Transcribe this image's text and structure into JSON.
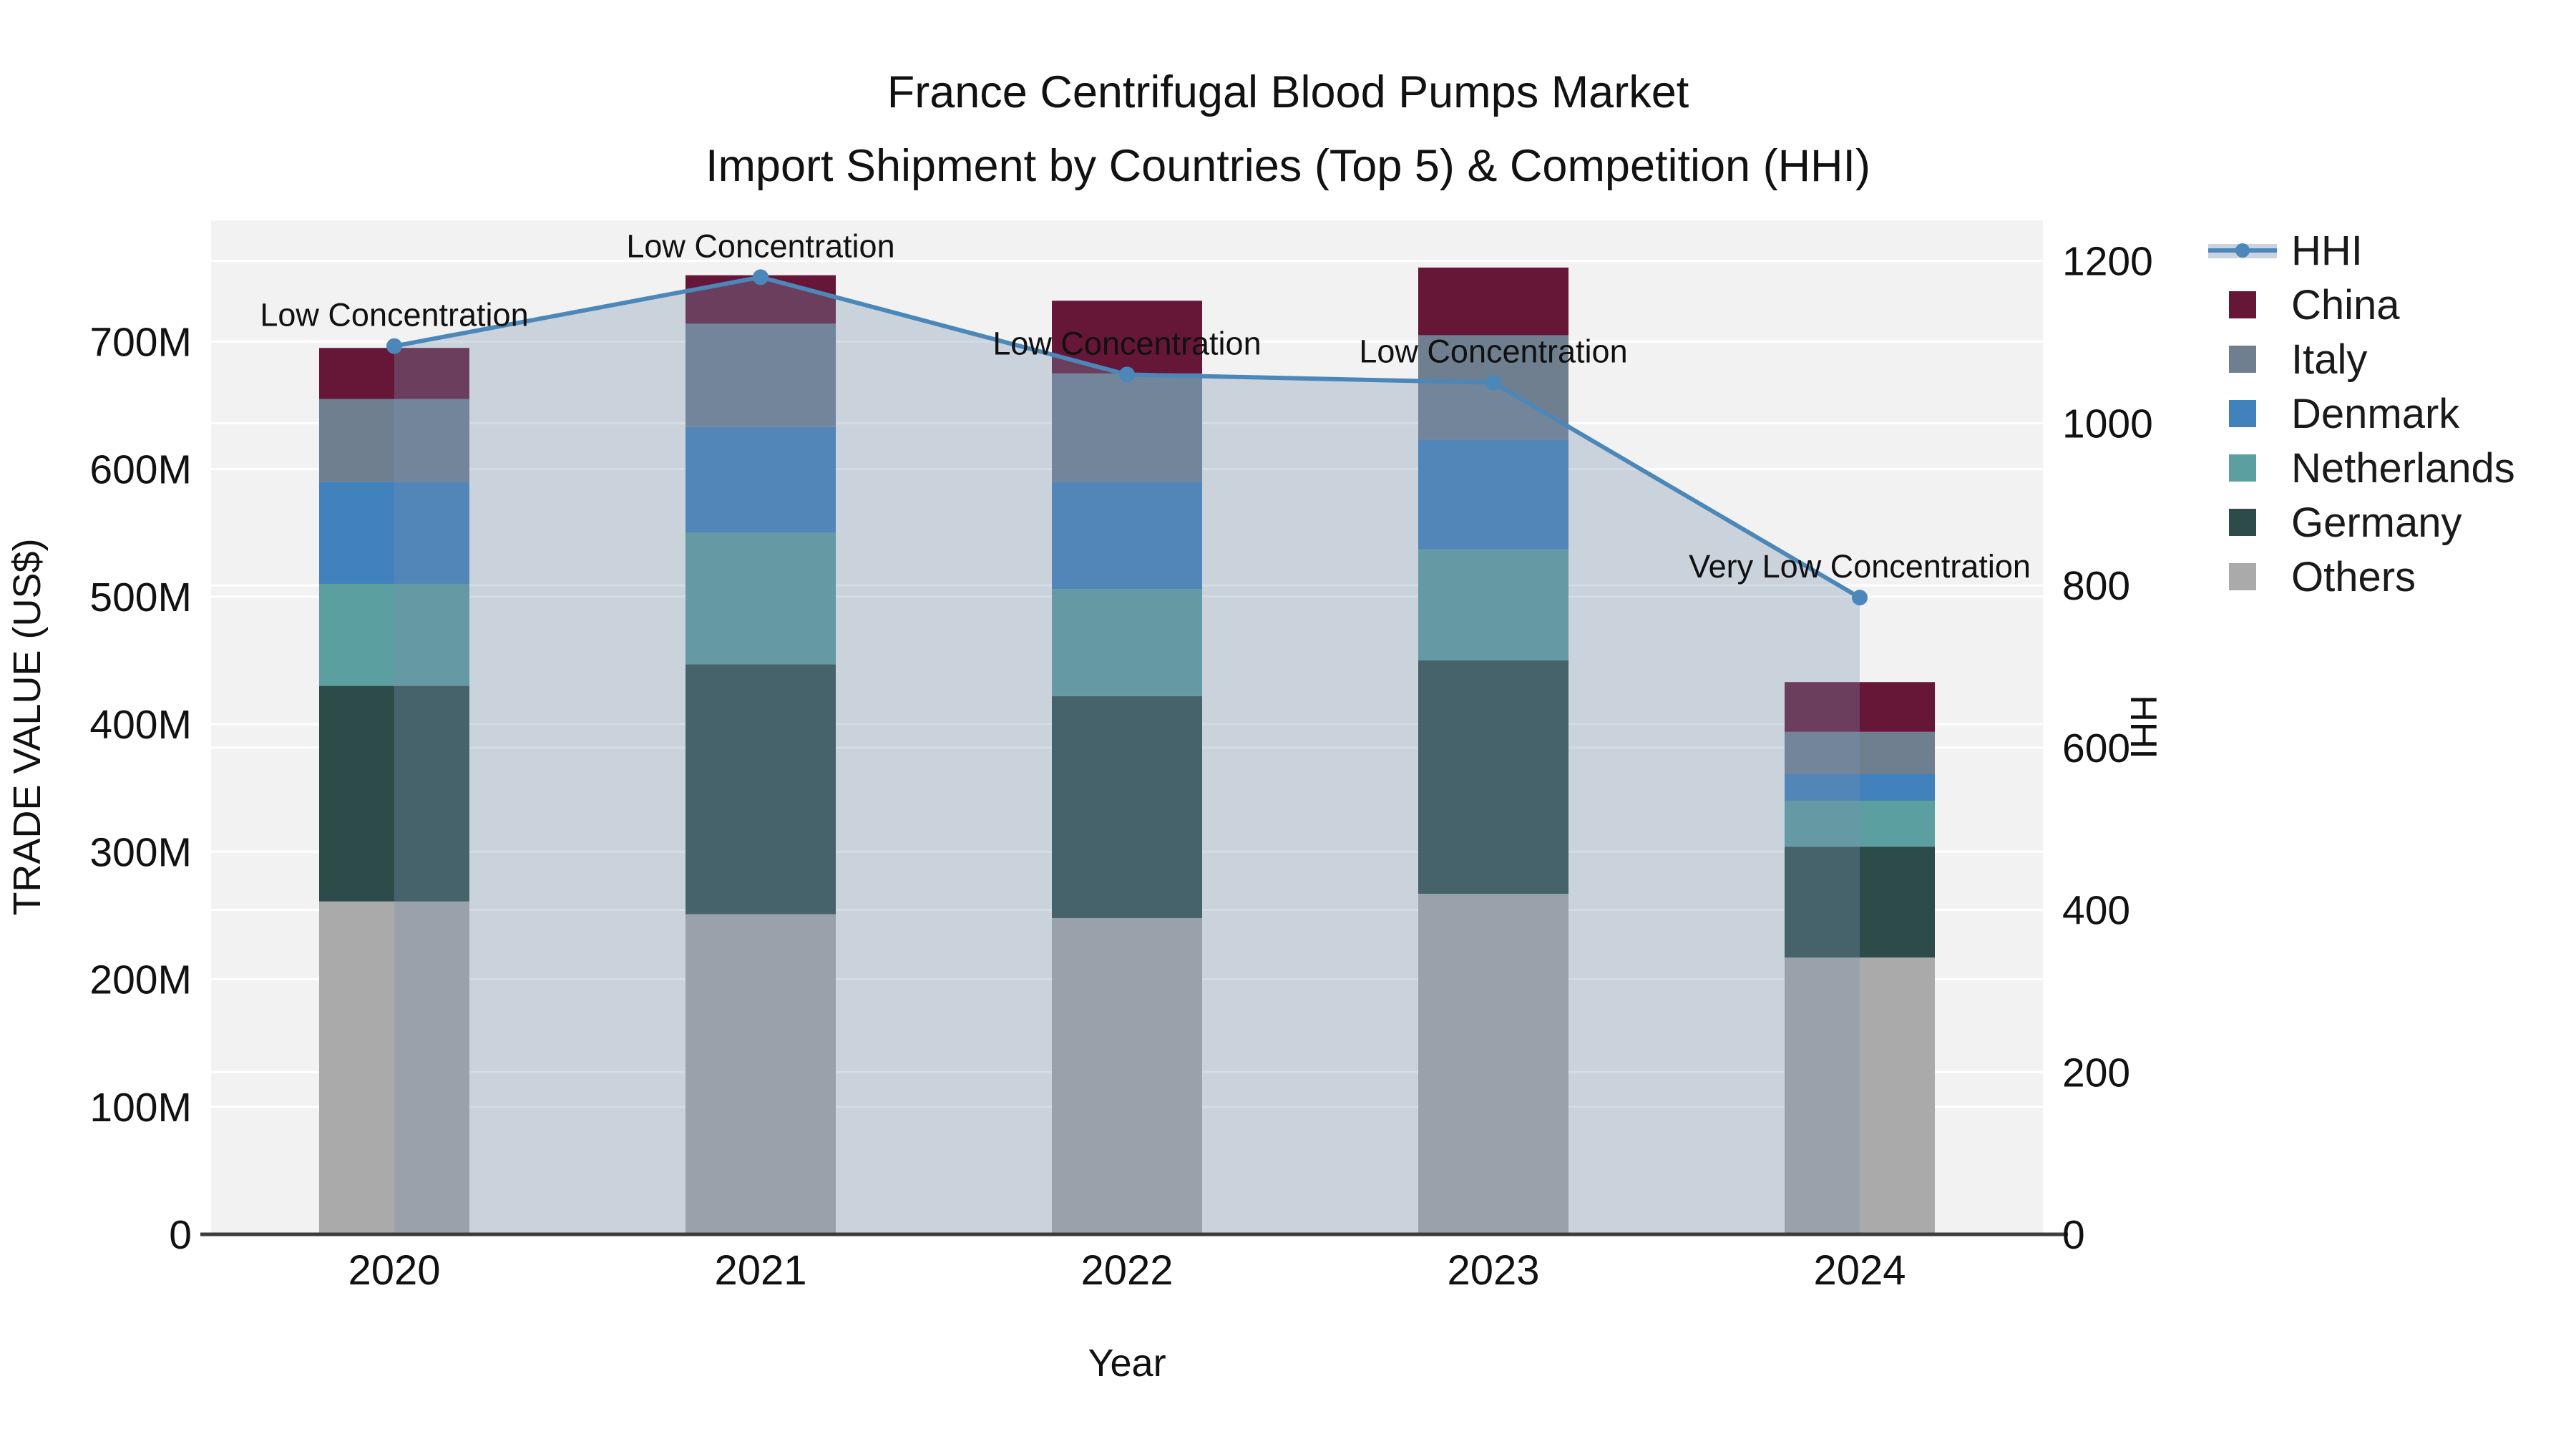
{
  "title": {
    "line1": "France Centrifugal Blood Pumps Market",
    "line2": "Import Shipment by Countries (Top 5) & Competition (HHI)"
  },
  "axes": {
    "y_left_title": "TRADE VALUE (US$)",
    "y_right_title": "HHI",
    "x_title": "Year"
  },
  "legend": {
    "items": [
      {
        "label": "HHI",
        "type": "line",
        "color": "#4c87b9"
      },
      {
        "label": "China",
        "type": "swatch",
        "color": "#661637"
      },
      {
        "label": "Italy",
        "type": "swatch",
        "color": "#6f7f8f"
      },
      {
        "label": "Denmark",
        "type": "swatch",
        "color": "#4181bc"
      },
      {
        "label": "Netherlands",
        "type": "swatch",
        "color": "#5c9fa0"
      },
      {
        "label": "Germany",
        "type": "swatch",
        "color": "#2d4c49"
      },
      {
        "label": "Others",
        "type": "swatch",
        "color": "#a9aaa9"
      }
    ]
  },
  "chart_data": {
    "type": "bar",
    "subtype": "stacked-bars-with-line-overlay",
    "categories": [
      "2020",
      "2021",
      "2022",
      "2023",
      "2024"
    ],
    "value_unit": "US$ millions",
    "series": [
      {
        "name": "Others",
        "color": "#a9aaa9",
        "values": [
          261,
          251,
          248,
          267,
          217
        ]
      },
      {
        "name": "Germany",
        "color": "#2d4c49",
        "values": [
          169,
          196,
          174,
          183,
          87
        ]
      },
      {
        "name": "Netherlands",
        "color": "#5c9fa0",
        "values": [
          80,
          103,
          84,
          87,
          36
        ]
      },
      {
        "name": "Denmark",
        "color": "#4181bc",
        "values": [
          80,
          83,
          84,
          86,
          21
        ]
      },
      {
        "name": "Italy",
        "color": "#6f7f8f",
        "values": [
          65,
          81,
          85,
          82,
          33
        ]
      },
      {
        "name": "China",
        "color": "#661637",
        "values": [
          40,
          38,
          57,
          53,
          39
        ]
      }
    ],
    "bar_totals": [
      695,
      752,
      732,
      758,
      433
    ],
    "line": {
      "name": "HHI",
      "values": [
        1095,
        1180,
        1060,
        1050,
        785
      ],
      "color": "#4c87b9",
      "area_fill": "rgba(121,146,175,0.33)"
    },
    "annotations": [
      {
        "category": "2020",
        "text": "Low Concentration"
      },
      {
        "category": "2021",
        "text": "Low Concentration"
      },
      {
        "category": "2022",
        "text": "Low Concentration"
      },
      {
        "category": "2023",
        "text": "Low Concentration"
      },
      {
        "category": "2024",
        "text": "Very Low Concentration"
      }
    ],
    "y_left": {
      "label": "TRADE VALUE (US$)",
      "range": [
        0,
        795
      ],
      "ticks": [
        {
          "v": 0,
          "label": "0"
        },
        {
          "v": 100,
          "label": "100M"
        },
        {
          "v": 200,
          "label": "200M"
        },
        {
          "v": 300,
          "label": "300M"
        },
        {
          "v": 400,
          "label": "400M"
        },
        {
          "v": 500,
          "label": "500M"
        },
        {
          "v": 600,
          "label": "600M"
        },
        {
          "v": 700,
          "label": "700M"
        }
      ]
    },
    "y_right": {
      "label": "HHI",
      "range": [
        0,
        1250
      ],
      "ticks": [
        {
          "v": 0,
          "label": "0"
        },
        {
          "v": 200,
          "label": "200"
        },
        {
          "v": 400,
          "label": "400"
        },
        {
          "v": 600,
          "label": "600"
        },
        {
          "v": 800,
          "label": "800"
        },
        {
          "v": 1000,
          "label": "1000"
        },
        {
          "v": 1200,
          "label": "1200"
        }
      ]
    },
    "x_label": "Year",
    "plot_bg": "#f2f2f2",
    "grid_color": "#ffffff",
    "axis_line_color": "#3c3c3c",
    "legend_position": "right",
    "grid": true
  }
}
